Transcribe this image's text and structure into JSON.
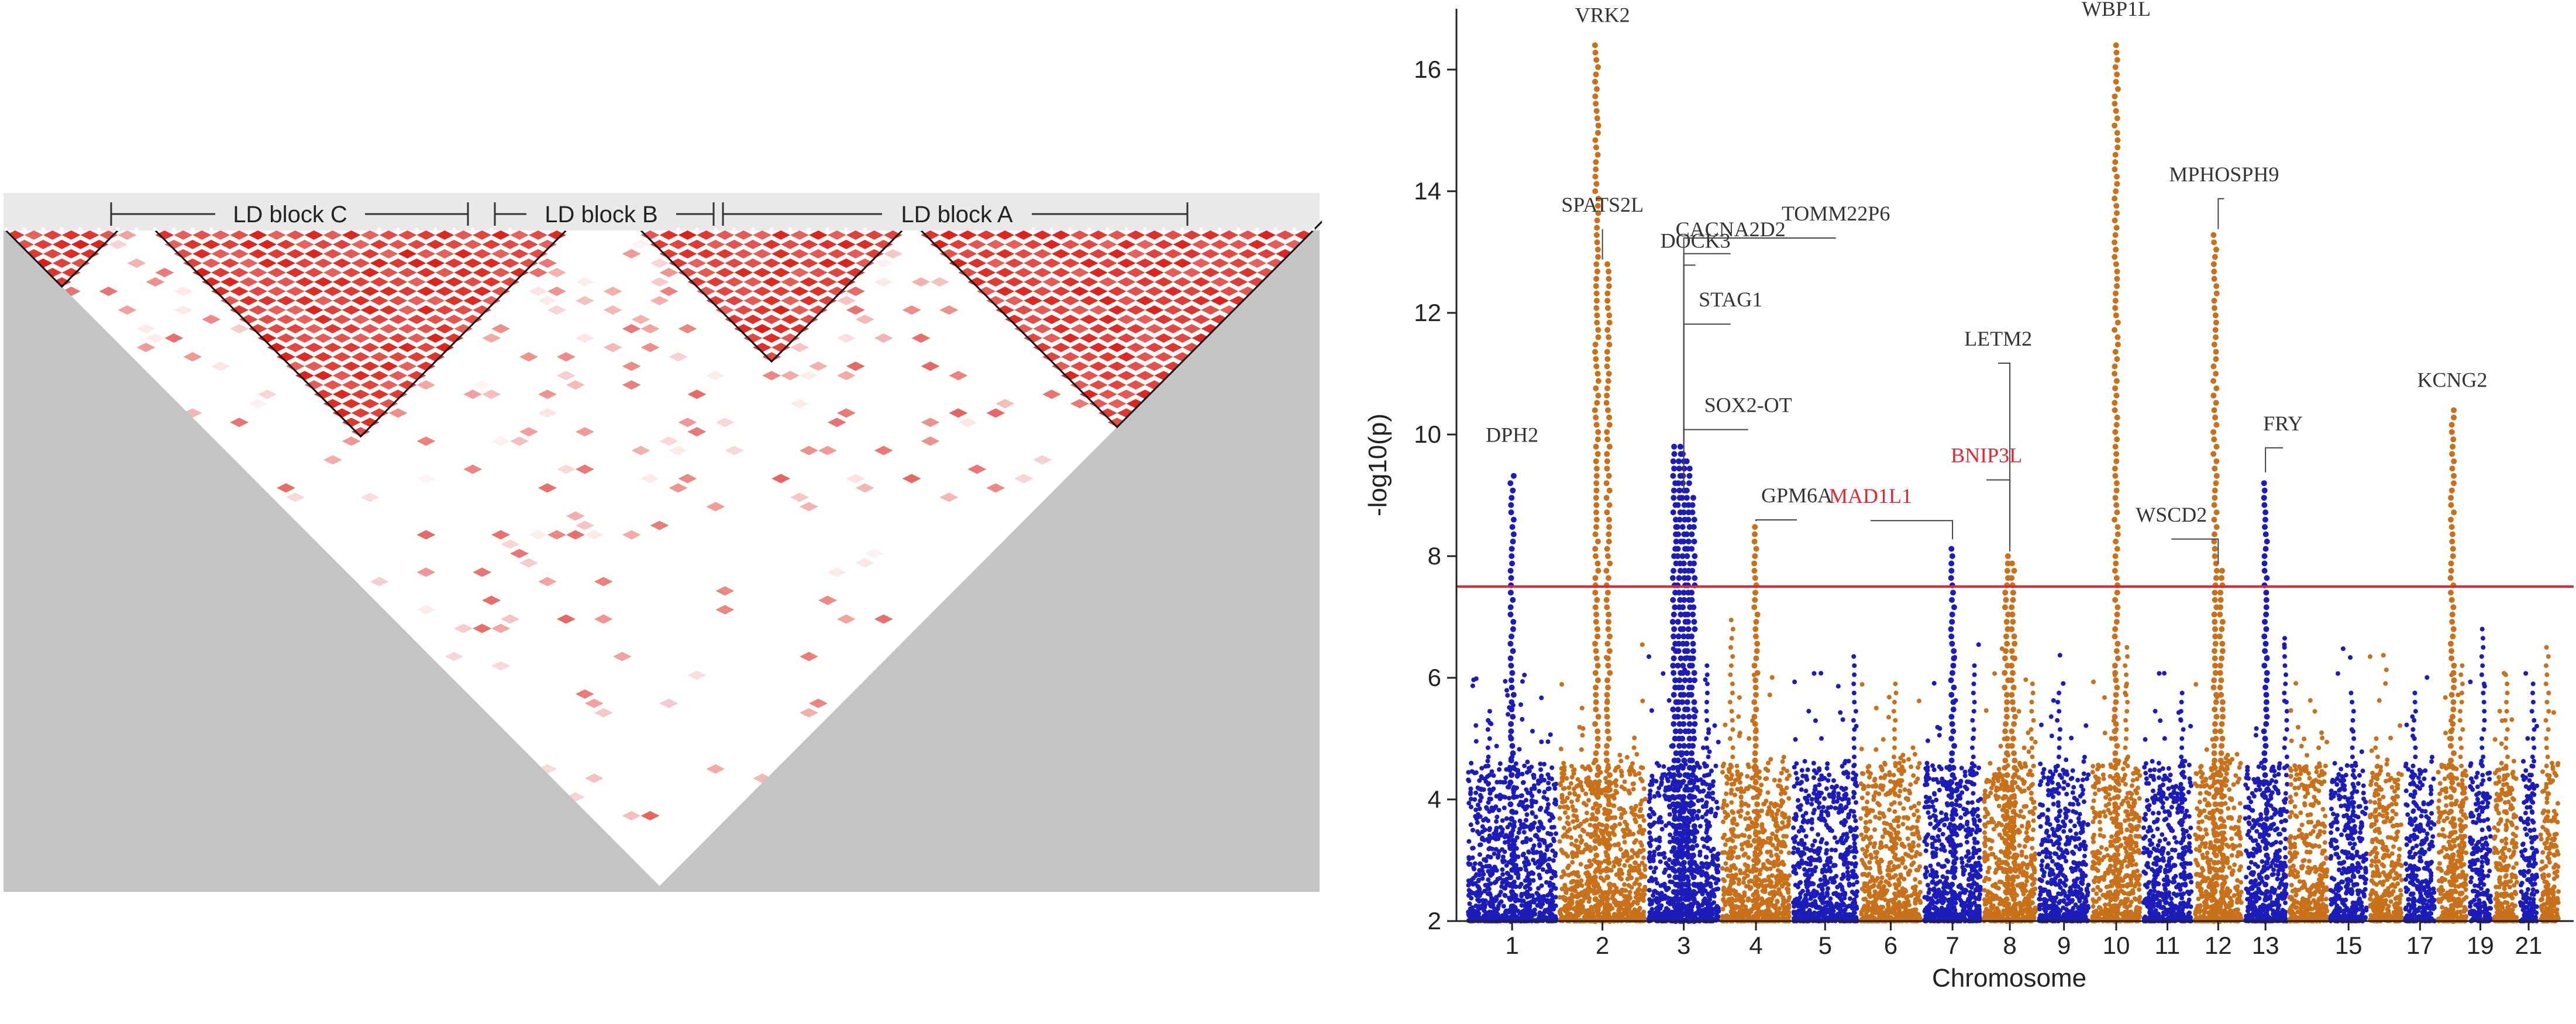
{
  "ld_plot": {
    "blocks": [
      {
        "label": "LD block C"
      },
      {
        "label": "LD block B"
      },
      {
        "label": "LD block A"
      }
    ],
    "colors": {
      "background": "#c4c4c4",
      "strong": "#dc2019",
      "weak": "#f8d0cf",
      "frame": "#e9e9e9"
    }
  },
  "chart_data": {
    "type": "scatter",
    "title": "",
    "xlabel": "Chromosome",
    "ylabel": "-log10(p)",
    "ylim": [
      2,
      17
    ],
    "yticks": [
      2,
      4,
      6,
      8,
      10,
      12,
      14,
      16
    ],
    "xtick_labels": [
      "1",
      "2",
      "3",
      "4",
      "5",
      "6",
      "7",
      "8",
      "9",
      "10",
      "11",
      "12",
      "13",
      "15",
      "17",
      "19",
      "21"
    ],
    "threshold": 7.5,
    "chromosome_colors": [
      "#1c1cba",
      "#c8701a"
    ],
    "chromosome_order": [
      "1",
      "2",
      "3",
      "4",
      "5",
      "6",
      "7",
      "8",
      "9",
      "10",
      "11",
      "12",
      "13",
      "14",
      "15",
      "16",
      "17",
      "18",
      "19",
      "20",
      "21",
      "22"
    ],
    "annotations": [
      {
        "gene": "DPH2",
        "chromosome": "1",
        "neg_log10_p": 9.4,
        "color": "#333333"
      },
      {
        "gene": "VRK2",
        "chromosome": "2",
        "neg_log10_p": 16.4,
        "color": "#333333"
      },
      {
        "gene": "SPATS2L",
        "chromosome": "2",
        "neg_log10_p": 12.8,
        "color": "#333333"
      },
      {
        "gene": "DOCK3",
        "chromosome": "3",
        "neg_log10_p": 9.9,
        "color": "#333333"
      },
      {
        "gene": "CACNA2D2",
        "chromosome": "3",
        "neg_log10_p": 9.8,
        "color": "#333333"
      },
      {
        "gene": "STAG1",
        "chromosome": "3",
        "neg_log10_p": 9.7,
        "color": "#333333"
      },
      {
        "gene": "SOX2-OT",
        "chromosome": "3",
        "neg_log10_p": 9.6,
        "color": "#333333"
      },
      {
        "gene": "TOMM22P6",
        "chromosome": "3",
        "neg_log10_p": 9.0,
        "color": "#333333"
      },
      {
        "gene": "GPM6A",
        "chromosome": "4",
        "neg_log10_p": 8.5,
        "color": "#333333"
      },
      {
        "gene": "BNIP3L",
        "chromosome": "8",
        "neg_log10_p": 8.1,
        "color": "#e8252e"
      },
      {
        "gene": "MAD1L1",
        "chromosome": "7",
        "neg_log10_p": 8.2,
        "color": "#e8252e"
      },
      {
        "gene": "LETM2",
        "chromosome": "8",
        "neg_log10_p": 8.0,
        "color": "#333333"
      },
      {
        "gene": "WBP1L",
        "chromosome": "10",
        "neg_log10_p": 16.5,
        "color": "#333333"
      },
      {
        "gene": "MPHOSPH9",
        "chromosome": "12",
        "neg_log10_p": 13.3,
        "color": "#333333"
      },
      {
        "gene": "WSCD2",
        "chromosome": "12",
        "neg_log10_p": 7.8,
        "color": "#333333"
      },
      {
        "gene": "FRY",
        "chromosome": "13",
        "neg_log10_p": 9.3,
        "color": "#333333"
      },
      {
        "gene": "KCNG2",
        "chromosome": "18",
        "neg_log10_p": 10.4,
        "color": "#333333"
      }
    ],
    "threshold_color": "#e8252e"
  }
}
